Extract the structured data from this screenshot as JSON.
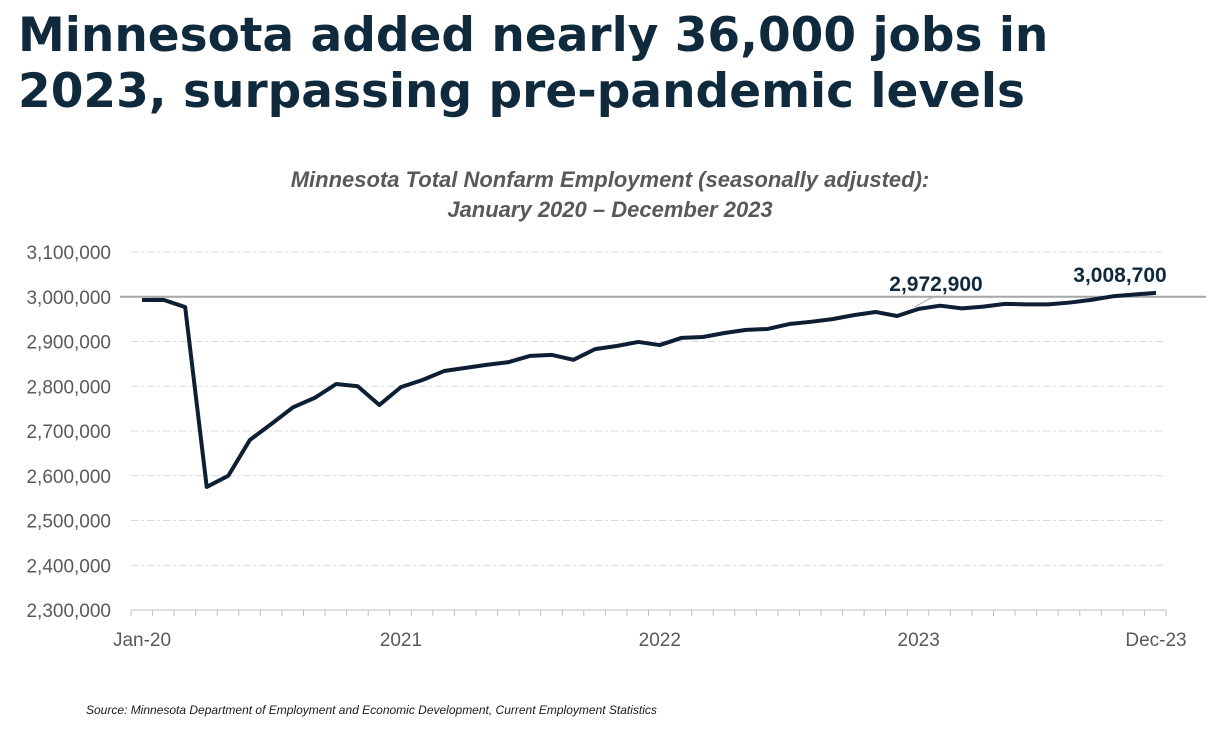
{
  "headline": "Minnesota added nearly 36,000 jobs in 2023, surpassing pre-pandemic levels",
  "source": "Source: Minnesota Department of Employment and Economic Development, Current Employment Statistics",
  "chart_data": {
    "type": "line",
    "title_line1": "Minnesota Total Nonfarm Employment (seasonally adjusted):",
    "title_line2": "January 2020 – December 2023",
    "xlabel": "",
    "ylabel": "",
    "ylim": [
      2300000,
      3100000
    ],
    "yticks": [
      2300000,
      2400000,
      2500000,
      2600000,
      2700000,
      2800000,
      2900000,
      3000000,
      3100000
    ],
    "ytick_labels": [
      "2,300,000",
      "2,400,000",
      "2,500,000",
      "2,600,000",
      "2,700,000",
      "2,800,000",
      "2,900,000",
      "3,000,000",
      "3,100,000"
    ],
    "xtick_labels": [
      {
        "month_index": 0,
        "label": "Jan-20"
      },
      {
        "month_index": 12,
        "label": "2021"
      },
      {
        "month_index": 24,
        "label": "2022"
      },
      {
        "month_index": 36,
        "label": "2023"
      },
      {
        "month_index": 47,
        "label": "Dec-23"
      }
    ],
    "grid": "horizontal dash-dot",
    "reference_line": 3000000,
    "line_color": "#0e1e33",
    "x_start": "2020-01",
    "x_end": "2023-12",
    "values": [
      2992700,
      2993000,
      2977000,
      2575000,
      2600000,
      2680000,
      2716000,
      2753000,
      2774000,
      2805000,
      2800000,
      2758000,
      2798000,
      2814000,
      2834000,
      2841000,
      2848000,
      2854000,
      2868000,
      2870000,
      2859000,
      2883000,
      2890000,
      2899000,
      2892000,
      2908000,
      2910000,
      2919000,
      2926000,
      2928000,
      2939000,
      2944000,
      2950000,
      2959000,
      2966000,
      2957000,
      2972900,
      2980000,
      2974000,
      2978000,
      2984000,
      2983000,
      2983000,
      2987000,
      2993000,
      3001000,
      3005000,
      3008700
    ],
    "annotations": [
      {
        "month_index": 36,
        "label": "2,972,900"
      },
      {
        "month_index": 47,
        "label": "3,008,700"
      }
    ]
  }
}
